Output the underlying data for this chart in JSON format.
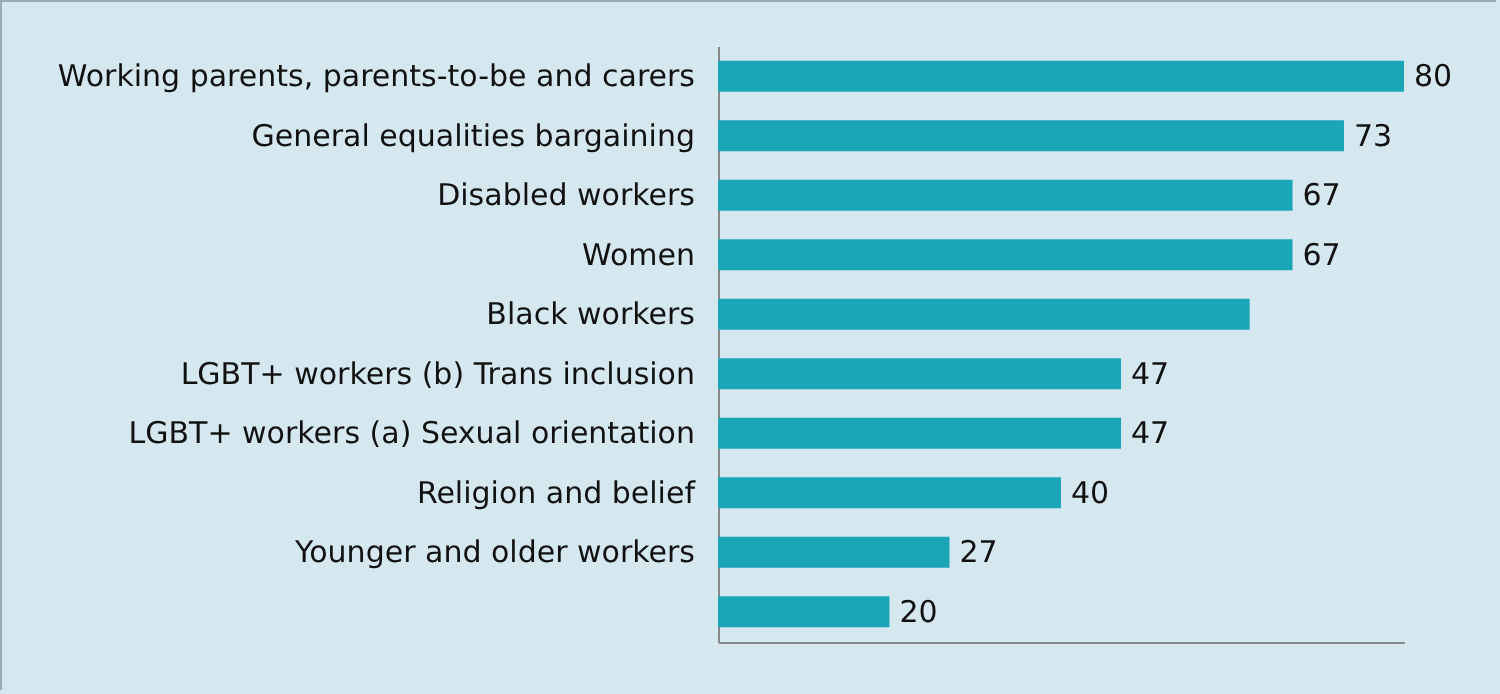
{
  "chart_data": {
    "type": "bar",
    "orientation": "horizontal",
    "categories": [
      "Working parents, parents-to-be and carers",
      "General equalities bargaining",
      "Disabled workers",
      "Women",
      "Black workers",
      "LGBT+ workers (b) Trans inclusion",
      "LGBT+ workers (a) Sexual orientation",
      "Religion and belief",
      "Younger and older workers",
      null
    ],
    "values": [
      80,
      73,
      67,
      67,
      62,
      47,
      47,
      40,
      27,
      20
    ],
    "value_labels": [
      "80",
      "73",
      "67",
      "67",
      null,
      "47",
      "47",
      "40",
      "27",
      "20"
    ],
    "color": "#1aa6b7"
  }
}
